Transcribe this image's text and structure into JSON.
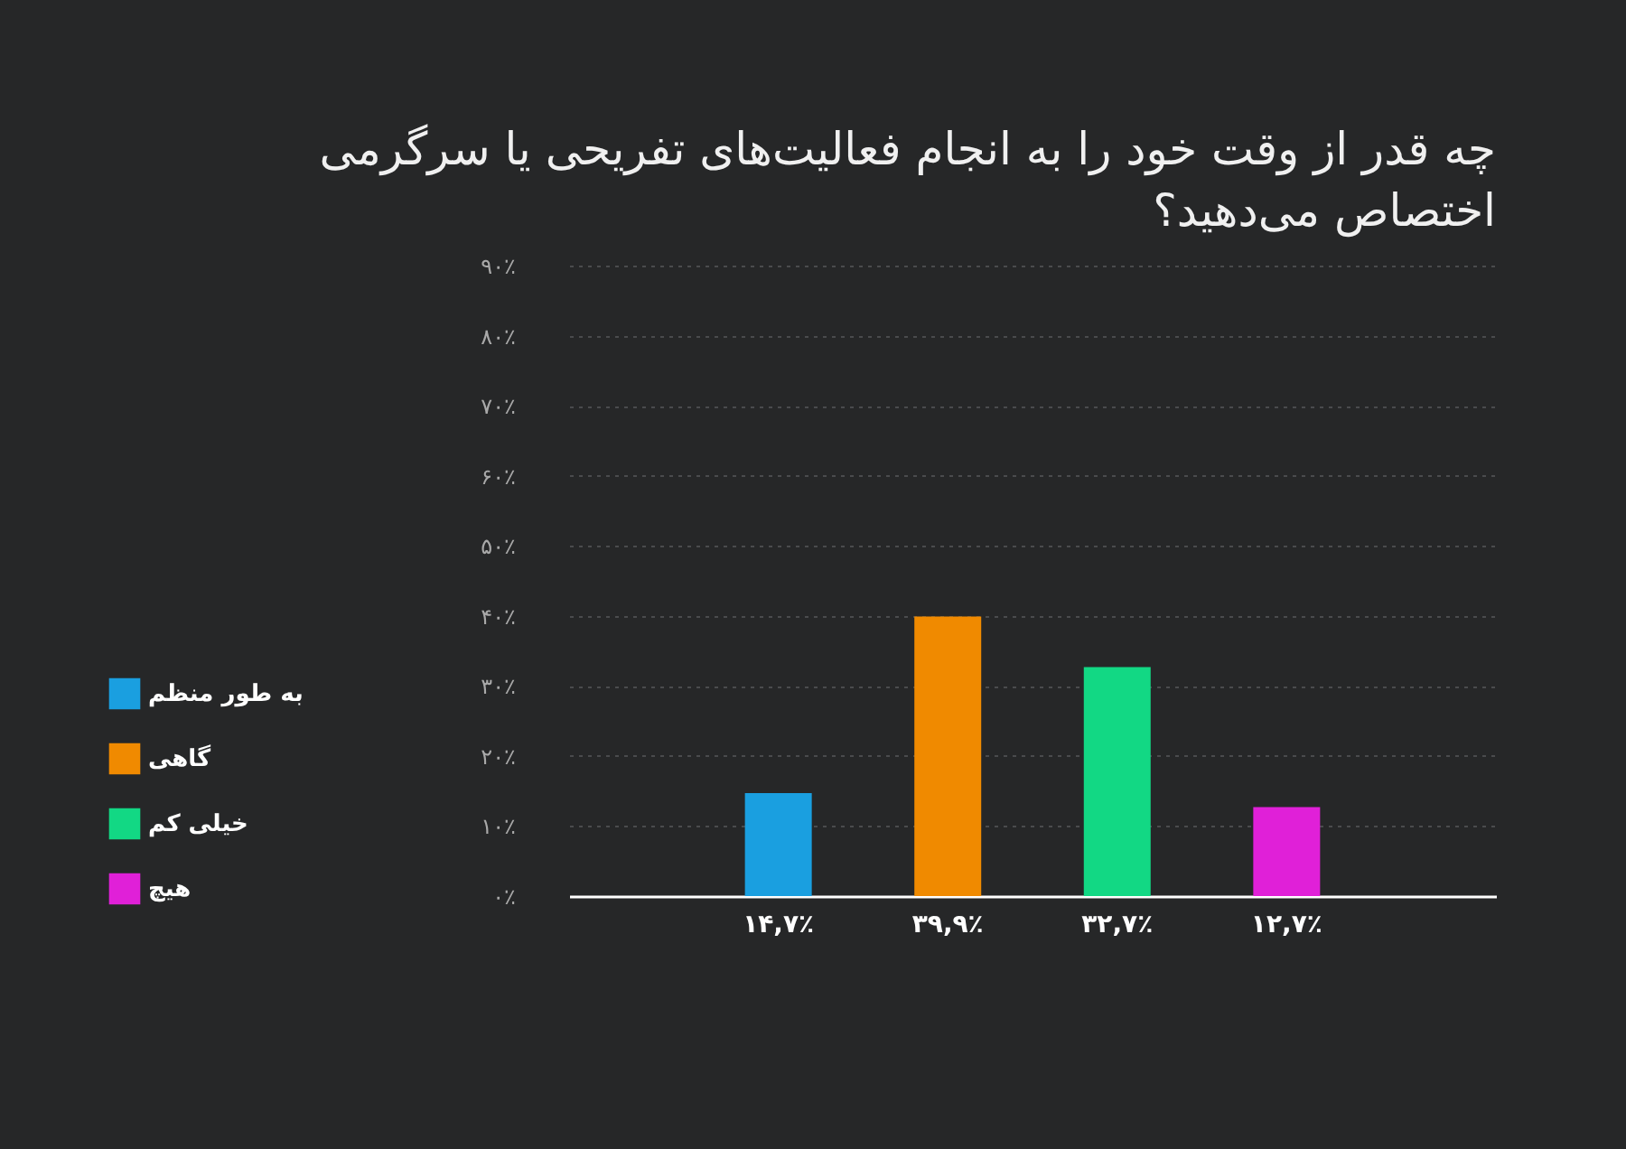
{
  "chart_data": {
    "type": "bar",
    "title": "چه قدر از وقت خود را به انجام فعالیت‌های تفریحی یا سرگرمی اختصاص می‌دهید؟",
    "categories": [
      null,
      null,
      null,
      null
    ],
    "stacked": true,
    "series": [
      {
        "name": "به طور منظم",
        "color": "#1a9fe0",
        "values": [
          14.7,
          null,
          null,
          null
        ],
        "value_labels": [
          "۱۴,۷٪",
          null,
          null,
          null
        ]
      },
      {
        "name": "گاهی",
        "color": "#f08a00",
        "values": [
          null,
          39.9,
          null,
          null
        ],
        "value_labels": [
          null,
          "۳۹,۹٪",
          null,
          null
        ]
      },
      {
        "name": "خیلی کم",
        "color": "#12d884",
        "values": [
          null,
          null,
          32.7,
          null
        ],
        "value_labels": [
          null,
          null,
          "۳۲,۷٪",
          null
        ]
      },
      {
        "name": "هیچ",
        "color": "#e020d8",
        "values": [
          null,
          null,
          null,
          12.7
        ],
        "value_labels": [
          null,
          null,
          null,
          "۱۲,۷٪"
        ]
      }
    ],
    "ylim": [
      0,
      90
    ],
    "yticks": [
      {
        "value": 0,
        "label": "۰٪"
      },
      {
        "value": 10,
        "label": "۱۰٪"
      },
      {
        "value": 20,
        "label": "۲۰٪"
      },
      {
        "value": 30,
        "label": "۳۰٪"
      },
      {
        "value": 40,
        "label": "۴۰٪"
      },
      {
        "value": 50,
        "label": "۵۰٪"
      },
      {
        "value": 60,
        "label": "۶۰٪"
      },
      {
        "value": 70,
        "label": "۷۰٪"
      },
      {
        "value": 80,
        "label": "۸۰٪"
      },
      {
        "value": 90,
        "label": "۹۰٪"
      }
    ],
    "tick_labels": "y",
    "grid": "y",
    "legend": "left"
  }
}
